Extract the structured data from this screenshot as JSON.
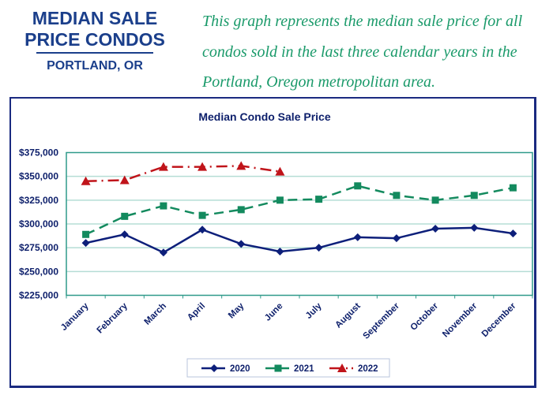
{
  "header": {
    "title_line1": "MEDIAN SALE",
    "title_line2": "PRICE CONDOS",
    "location": "PORTLAND, OR",
    "description": "This graph represents the median sale price for all condos sold in the last three calendar years in the Portland, Oregon metropolitan area."
  },
  "chart_data": {
    "type": "line",
    "title": "Median Condo Sale Price",
    "xlabel": "",
    "ylabel": "",
    "ylim": [
      225000,
      375000
    ],
    "yticks": [
      225000,
      250000,
      275000,
      300000,
      325000,
      350000,
      375000
    ],
    "ytick_labels": [
      "$225,000",
      "$250,000",
      "$275,000",
      "$300,000",
      "$325,000",
      "$350,000",
      "$375,000"
    ],
    "grid": true,
    "legend_placement": "bottom",
    "categories": [
      "January",
      "February",
      "March",
      "April",
      "May",
      "June",
      "July",
      "August",
      "September",
      "October",
      "November",
      "December"
    ],
    "series": [
      {
        "name": "2020",
        "color": "#0d1f7a",
        "marker": "diamond",
        "style": "solid",
        "values": [
          280000,
          289000,
          270000,
          294000,
          279000,
          271000,
          275000,
          286000,
          285000,
          295000,
          296000,
          290000
        ]
      },
      {
        "name": "2021",
        "color": "#138a5e",
        "marker": "square",
        "style": "dashed",
        "values": [
          289000,
          308000,
          319000,
          309000,
          315000,
          325000,
          326000,
          340000,
          330000,
          325000,
          330000,
          338000
        ]
      },
      {
        "name": "2022",
        "color": "#c0141a",
        "marker": "triangle",
        "style": "dash-dot",
        "values": [
          345000,
          346000,
          360000,
          360000,
          361000,
          355000,
          null,
          null,
          null,
          null,
          null,
          null
        ]
      }
    ]
  }
}
